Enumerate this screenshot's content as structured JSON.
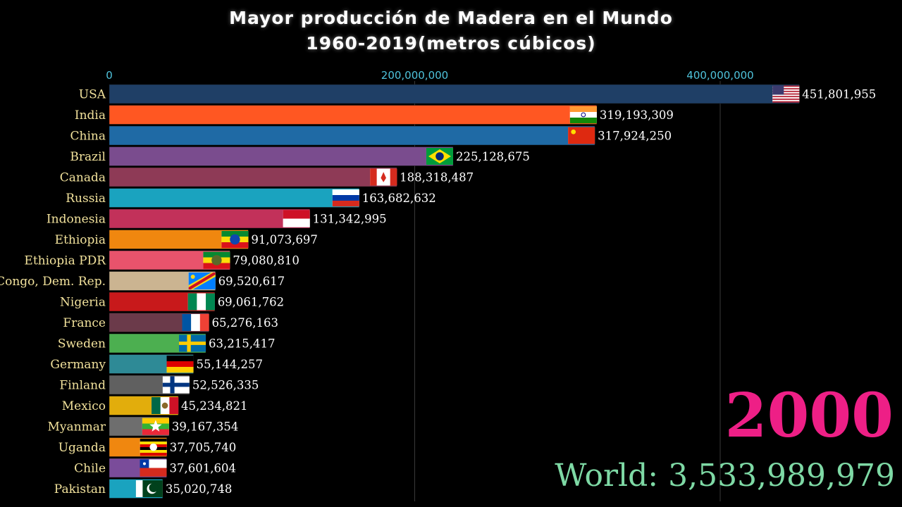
{
  "title": {
    "line1": "Mayor producción de Madera en el Mundo",
    "line2": "1960-2019(metros cúbicos)"
  },
  "colors": {
    "background": "#000000",
    "axis_text": "#4fc3dc",
    "label_text": "#f2e29c",
    "value_text": "#ffffff",
    "year": "#ee1f86",
    "world": "#7ed9a5"
  },
  "year": "2000",
  "world": {
    "label": "World:",
    "value": "3,533,989,979"
  },
  "chart_data": {
    "type": "bar",
    "orientation": "horizontal",
    "xlim": [
      0,
      470000000
    ],
    "ticks": [
      {
        "value": 0,
        "label": "0"
      },
      {
        "value": 200000000,
        "label": "200,000,000"
      },
      {
        "value": 400000000,
        "label": "400,000,000"
      }
    ],
    "grid": true,
    "categories": [
      "USA",
      "India",
      "China",
      "Brazil",
      "Canada",
      "Russia",
      "Indonesia",
      "Ethiopia",
      "Ethiopia PDR",
      "Congo, Dem. Rep.",
      "Nigeria",
      "France",
      "Sweden",
      "Germany",
      "Finland",
      "Mexico",
      "Myanmar",
      "Uganda",
      "Chile",
      "Pakistan"
    ],
    "values": [
      451801955,
      319193309,
      317924250,
      225128675,
      188318487,
      163682632,
      131342995,
      91073697,
      79080810,
      69520617,
      69061762,
      65276163,
      63215417,
      55144257,
      52526335,
      45234821,
      39167354,
      37705740,
      37601604,
      35020748
    ],
    "value_labels": [
      "451,801,955",
      "319,193,309",
      "317,924,250",
      "225,128,675",
      "188,318,487",
      "163,682,632",
      "131,342,995",
      "91,073,697",
      "79,080,810",
      "69,520,617",
      "69,061,762",
      "65,276,163",
      "63,215,417",
      "55,144,257",
      "52,526,335",
      "45,234,821",
      "39,167,354",
      "37,705,740",
      "37,601,604",
      "35,020,748"
    ],
    "bar_colors": [
      "#1f3f66",
      "#ff5722",
      "#1f6aa5",
      "#7a4c8e",
      "#8e3a56",
      "#1aa3bf",
      "#c2315a",
      "#f0870f",
      "#e8536c",
      "#cbb491",
      "#c8191b",
      "#6b3a4a",
      "#4caf50",
      "#2e8a96",
      "#606060",
      "#e2ad0c",
      "#6e6e6e",
      "#f0870f",
      "#7a4c9a",
      "#1aa3bf"
    ],
    "flags": [
      "usa-flag",
      "india-flag",
      "china-flag",
      "brazil-flag",
      "canada-flag",
      "russia-flag",
      "indonesia-flag",
      "ethiopia-flag",
      "ethiopia-pdr-flag",
      "congo-flag",
      "nigeria-flag",
      "france-flag",
      "sweden-flag",
      "germany-flag",
      "finland-flag",
      "mexico-flag",
      "myanmar-flag",
      "uganda-flag",
      "chile-flag",
      "pakistan-flag"
    ]
  }
}
